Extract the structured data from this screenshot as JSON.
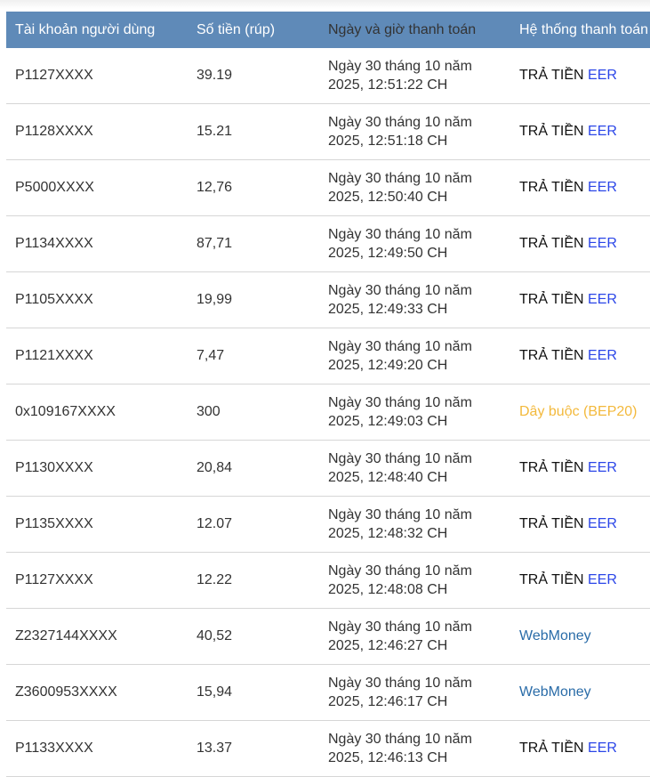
{
  "colors": {
    "header_bg": "#5f8ab8",
    "eer": "#2b46e8",
    "bep20": "#f3b93c",
    "webmoney": "#2a6ca8"
  },
  "headers": [
    "Tài khoản người dùng",
    "Số tiền (rúp)",
    "Ngày và giờ thanh toán",
    "Hệ thống thanh toán"
  ],
  "rows": [
    {
      "account": "P1127XXXX",
      "amount": "39.19",
      "date": "Ngày 30 tháng 10 năm",
      "time": "2025, 12:51:22 CH",
      "pay": "eer"
    },
    {
      "account": "P1128XXXX",
      "amount": "15.21",
      "date": "Ngày 30 tháng 10 năm",
      "time": "2025, 12:51:18 CH",
      "pay": "eer"
    },
    {
      "account": "P5000XXXX",
      "amount": "12,76",
      "date": "Ngày 30 tháng 10 năm",
      "time": "2025, 12:50:40 CH",
      "pay": "eer"
    },
    {
      "account": "P1134XXXX",
      "amount": "87,71",
      "date": "Ngày 30 tháng 10 năm",
      "time": "2025, 12:49:50 CH",
      "pay": "eer"
    },
    {
      "account": "P1105XXXX",
      "amount": "19,99",
      "date": "Ngày 30 tháng 10 năm",
      "time": "2025, 12:49:33 CH",
      "pay": "eer"
    },
    {
      "account": "P1121XXXX",
      "amount": "7,47",
      "date": "Ngày 30 tháng 10 năm",
      "time": "2025, 12:49:20 CH",
      "pay": "eer"
    },
    {
      "account": "0x109167XXXX",
      "amount": "300",
      "date": "Ngày 30 tháng 10 năm",
      "time": "2025, 12:49:03 CH",
      "pay": "bep"
    },
    {
      "account": "P1130XXXX",
      "amount": "20,84",
      "date": "Ngày 30 tháng 10 năm",
      "time": "2025, 12:48:40 CH",
      "pay": "eer"
    },
    {
      "account": "P1135XXXX",
      "amount": "12.07",
      "date": "Ngày 30 tháng 10 năm",
      "time": "2025, 12:48:32 CH",
      "pay": "eer"
    },
    {
      "account": "P1127XXXX",
      "amount": "12.22",
      "date": "Ngày 30 tháng 10 năm",
      "time": "2025, 12:48:08 CH",
      "pay": "eer"
    },
    {
      "account": "Z2327144XXXX",
      "amount": "40,52",
      "date": "Ngày 30 tháng 10 năm",
      "time": "2025, 12:46:27 CH",
      "pay": "wm"
    },
    {
      "account": "Z3600953XXXX",
      "amount": "15,94",
      "date": "Ngày 30 tháng 10 năm",
      "time": "2025, 12:46:17 CH",
      "pay": "wm"
    },
    {
      "account": "P1133XXXX",
      "amount": "13.37",
      "date": "Ngày 30 tháng 10 năm",
      "time": "2025, 12:46:13 CH",
      "pay": "eer"
    }
  ],
  "pay_labels": {
    "eer_prefix": "TRẢ TIỀN ",
    "eer_suffix": "EER",
    "bep": "Dây buộc (BEP20)",
    "wm": "WebMoney"
  }
}
